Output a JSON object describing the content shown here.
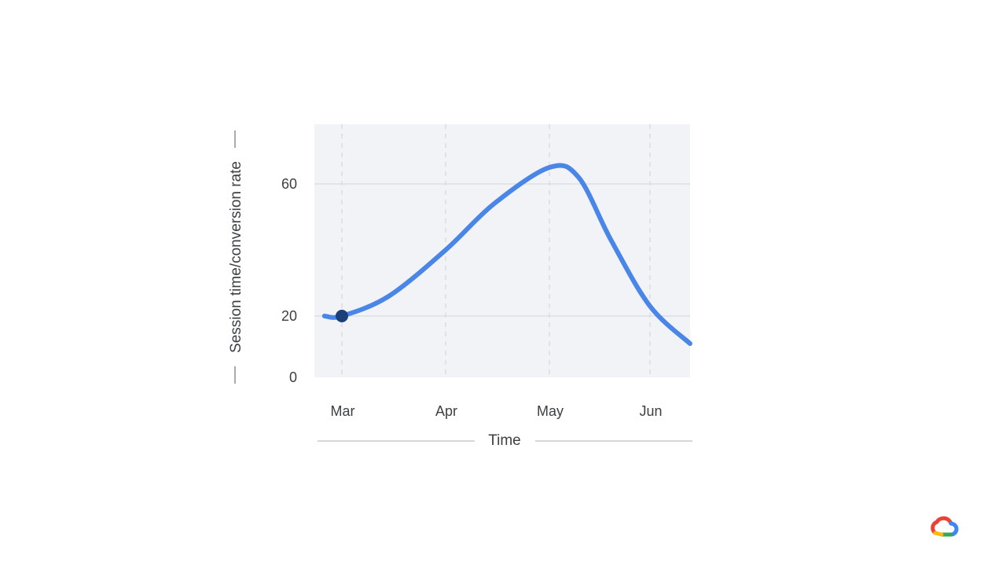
{
  "chart_data": {
    "type": "line",
    "xlabel": "Time",
    "ylabel": "Session time/conversion rate",
    "x_ticks": [
      "Mar",
      "Apr",
      "May",
      "Jun"
    ],
    "y_ticks": [
      0,
      20,
      60
    ],
    "ylim": [
      0,
      70
    ],
    "grid": {
      "horizontal": true,
      "vertical_dashed": true
    },
    "series": [
      {
        "color": "#4a86e8",
        "points": [
          {
            "x": "Feb 24",
            "y": 20
          },
          {
            "x": "Mar 1",
            "y": 20
          },
          {
            "x": "Mar 15",
            "y": 26
          },
          {
            "x": "Apr 1",
            "y": 40
          },
          {
            "x": "Apr 15",
            "y": 54
          },
          {
            "x": "May 1",
            "y": 65
          },
          {
            "x": "May 10",
            "y": 62
          },
          {
            "x": "May 20",
            "y": 43
          },
          {
            "x": "Jun 1",
            "y": 23
          },
          {
            "x": "Jun 14",
            "y": 11
          }
        ]
      }
    ],
    "marker": {
      "x": "Mar 1",
      "y": 20,
      "color": "#1a3f7a"
    }
  },
  "colors": {
    "plot_background": "#f1f3f6",
    "line": "#4a86e8",
    "marker": "#1a3f7a",
    "gridline": "#d2d4d8",
    "axis_text": "#3c4043"
  },
  "logo": {
    "icon": "google-cloud-icon"
  }
}
